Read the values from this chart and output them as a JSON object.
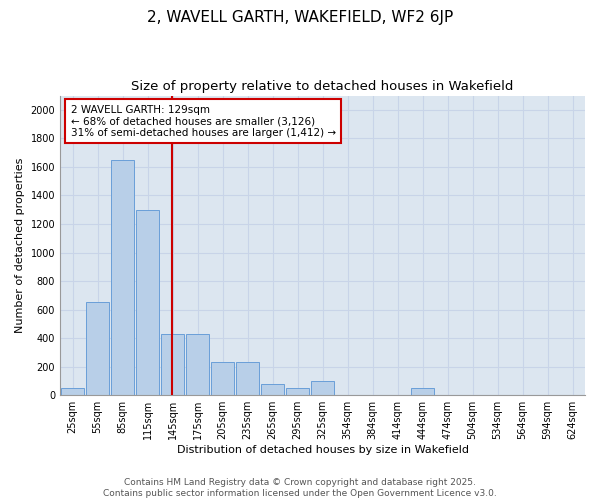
{
  "title1": "2, WAVELL GARTH, WAKEFIELD, WF2 6JP",
  "title2": "Size of property relative to detached houses in Wakefield",
  "xlabel": "Distribution of detached houses by size in Wakefield",
  "ylabel": "Number of detached properties",
  "categories": [
    "25sqm",
    "55sqm",
    "85sqm",
    "115sqm",
    "145sqm",
    "175sqm",
    "205sqm",
    "235sqm",
    "265sqm",
    "295sqm",
    "325sqm",
    "354sqm",
    "384sqm",
    "414sqm",
    "444sqm",
    "474sqm",
    "504sqm",
    "534sqm",
    "564sqm",
    "594sqm",
    "624sqm"
  ],
  "values": [
    50,
    650,
    1650,
    1300,
    430,
    430,
    230,
    230,
    80,
    50,
    100,
    0,
    0,
    0,
    50,
    0,
    0,
    0,
    0,
    0,
    0
  ],
  "bar_color": "#b8cfe8",
  "bar_edge_color": "#6a9fd8",
  "vline_x": 3.97,
  "vline_color": "#cc0000",
  "annotation_text": "2 WAVELL GARTH: 129sqm\n← 68% of detached houses are smaller (3,126)\n31% of semi-detached houses are larger (1,412) →",
  "annotation_box_color": "#ffffff",
  "annotation_border_color": "#cc0000",
  "ylim": [
    0,
    2100
  ],
  "yticks": [
    0,
    200,
    400,
    600,
    800,
    1000,
    1200,
    1400,
    1600,
    1800,
    2000
  ],
  "grid_color": "#c8d4e8",
  "background_color": "#dce6f0",
  "footer_text": "Contains HM Land Registry data © Crown copyright and database right 2025.\nContains public sector information licensed under the Open Government Licence v3.0.",
  "title_fontsize": 11,
  "subtitle_fontsize": 9.5,
  "annotation_fontsize": 7.5,
  "footer_fontsize": 6.5,
  "tick_fontsize": 7,
  "axis_label_fontsize": 8
}
